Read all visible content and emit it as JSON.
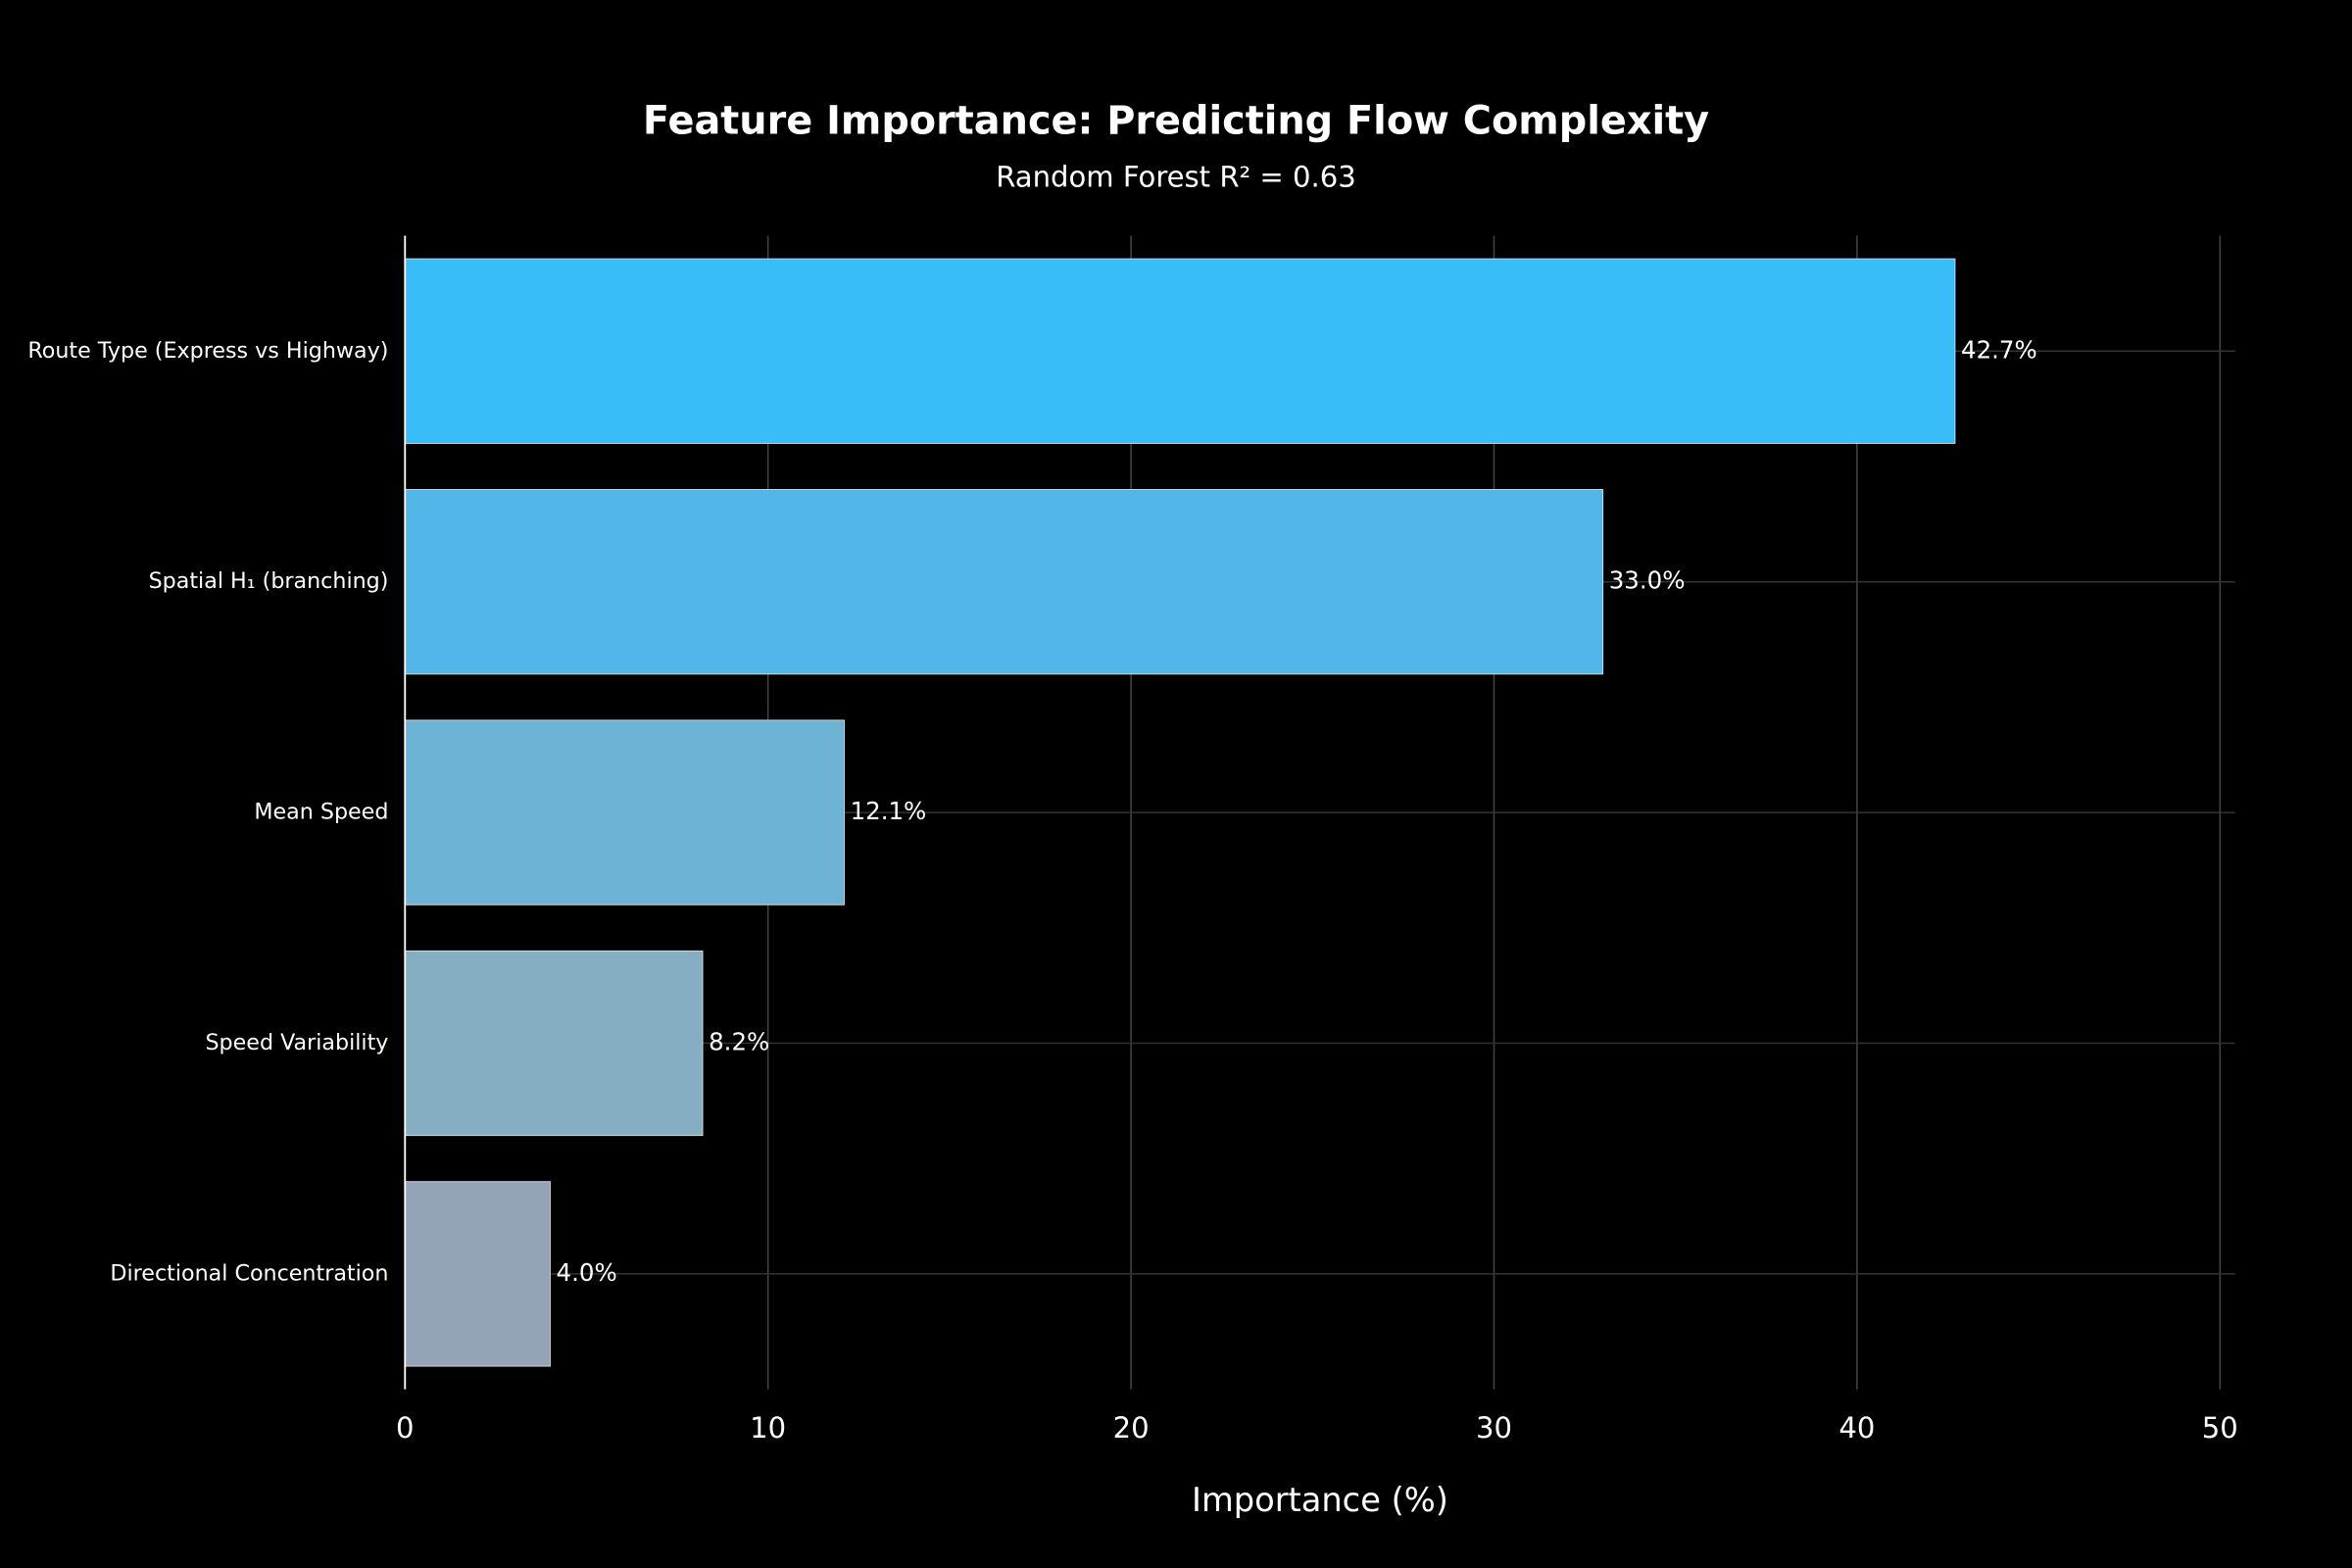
{
  "chart_data": {
    "type": "hbar",
    "title": "Feature Importance: Predicting Flow Complexity",
    "subtitle": "Random Forest R² = 0.63",
    "x_label": "Importance (%)",
    "categories": [
      "Route Type (Express vs Highway)",
      "Spatial H₁ (branching)",
      "Mean Speed",
      "Speed Variability",
      "Directional Concentration"
    ],
    "values": [
      42.7,
      33.0,
      12.1,
      8.2,
      4.0
    ],
    "value_labels": [
      "42.7%",
      "33.0%",
      "12.1%",
      "8.2%",
      "4.0%"
    ],
    "colors": [
      "#38bdf8",
      "#52b7e8",
      "#6cb3d6",
      "#86aec2",
      "#94a3b8"
    ],
    "xlim": [
      0,
      50
    ],
    "xticks": [
      0,
      10,
      20,
      30,
      40,
      50
    ],
    "grid": true
  }
}
